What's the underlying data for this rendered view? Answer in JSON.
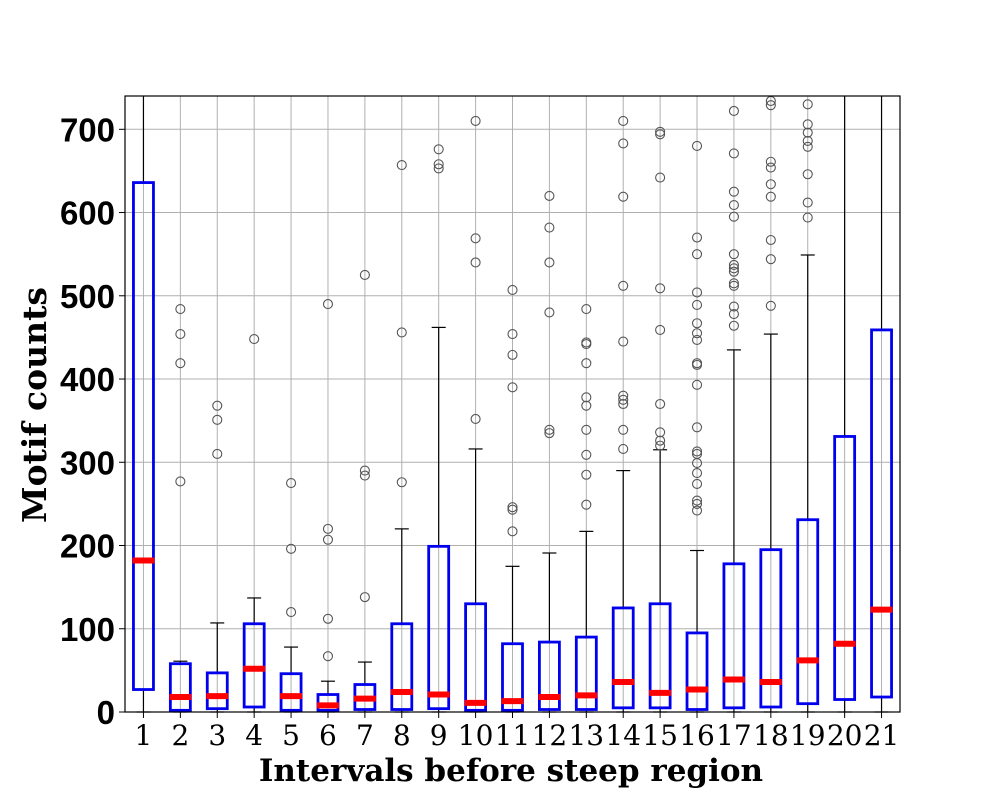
{
  "chart_data": {
    "type": "box",
    "xlabel": "Intervals before steep region",
    "ylabel": "Motif counts",
    "ylim": [
      0,
      740
    ],
    "yticks": [
      0,
      100,
      200,
      300,
      400,
      500,
      600,
      700
    ],
    "grid": true,
    "colors": {
      "box": "#0000ee",
      "median": "#ff0000",
      "whisker": "#000000",
      "flier": "#555555",
      "grid": "#b0b0b0"
    },
    "boxes": [
      {
        "label": "1",
        "whislo": 0,
        "q1": 27,
        "med": 182,
        "q3": 636,
        "whishi": 740,
        "fliers": []
      },
      {
        "label": "2",
        "whislo": 0,
        "q1": 2,
        "med": 18,
        "q3": 58,
        "whishi": 61,
        "fliers": [
          277,
          419,
          454,
          484
        ]
      },
      {
        "label": "3",
        "whislo": 0,
        "q1": 4,
        "med": 19,
        "q3": 47,
        "whishi": 107,
        "fliers": [
          310,
          351,
          368
        ]
      },
      {
        "label": "4",
        "whislo": 0,
        "q1": 6,
        "med": 52,
        "q3": 106,
        "whishi": 137,
        "fliers": [
          448
        ]
      },
      {
        "label": "5",
        "whislo": 0,
        "q1": 2,
        "med": 19,
        "q3": 46,
        "whishi": 78,
        "fliers": [
          120,
          196,
          275
        ]
      },
      {
        "label": "6",
        "whislo": 0,
        "q1": 2,
        "med": 8,
        "q3": 21,
        "whishi": 37,
        "fliers": [
          67,
          112,
          207,
          220,
          490
        ]
      },
      {
        "label": "7",
        "whislo": 0,
        "q1": 3,
        "med": 16,
        "q3": 33,
        "whishi": 60,
        "fliers": [
          138,
          284,
          290,
          525
        ]
      },
      {
        "label": "8",
        "whislo": 0,
        "q1": 3,
        "med": 24,
        "q3": 106,
        "whishi": 220,
        "fliers": [
          276,
          456,
          657
        ]
      },
      {
        "label": "9",
        "whislo": 0,
        "q1": 4,
        "med": 21,
        "q3": 199,
        "whishi": 462,
        "fliers": [
          653,
          658,
          676
        ]
      },
      {
        "label": "10",
        "whislo": 0,
        "q1": 2,
        "med": 11,
        "q3": 130,
        "whishi": 316,
        "fliers": [
          352,
          540,
          569,
          710
        ]
      },
      {
        "label": "11",
        "whislo": 0,
        "q1": 2,
        "med": 13,
        "q3": 82,
        "whishi": 175,
        "fliers": [
          217,
          243,
          246,
          390,
          429,
          454,
          507
        ]
      },
      {
        "label": "12",
        "whislo": 0,
        "q1": 3,
        "med": 18,
        "q3": 84,
        "whishi": 191,
        "fliers": [
          335,
          339,
          480,
          540,
          582,
          620
        ]
      },
      {
        "label": "13",
        "whislo": 0,
        "q1": 3,
        "med": 20,
        "q3": 90,
        "whishi": 217,
        "fliers": [
          249,
          285,
          309,
          339,
          368,
          378,
          419,
          442,
          444,
          484
        ]
      },
      {
        "label": "14",
        "whislo": 0,
        "q1": 5,
        "med": 36,
        "q3": 125,
        "whishi": 290,
        "fliers": [
          316,
          339,
          370,
          375,
          380,
          445,
          512,
          619,
          683,
          710
        ]
      },
      {
        "label": "15",
        "whislo": 0,
        "q1": 5,
        "med": 23,
        "q3": 130,
        "whishi": 315,
        "fliers": [
          320,
          326,
          336,
          370,
          459,
          509,
          642,
          694,
          697
        ]
      },
      {
        "label": "16",
        "whislo": 0,
        "q1": 3,
        "med": 27,
        "q3": 95,
        "whishi": 194,
        "fliers": [
          242,
          250,
          254,
          274,
          287,
          299,
          310,
          313,
          342,
          393,
          417,
          419,
          447,
          455,
          467,
          489,
          504,
          550,
          570,
          680
        ]
      },
      {
        "label": "17",
        "whislo": 0,
        "q1": 5,
        "med": 39,
        "q3": 178,
        "whishi": 435,
        "fliers": [
          464,
          478,
          487,
          512,
          515,
          529,
          533,
          537,
          550,
          595,
          609,
          625,
          671,
          722
        ]
      },
      {
        "label": "18",
        "whislo": 0,
        "q1": 6,
        "med": 36,
        "q3": 195,
        "whishi": 454,
        "fliers": [
          488,
          544,
          567,
          619,
          634,
          654,
          661,
          729,
          734
        ]
      },
      {
        "label": "19",
        "whislo": 0,
        "q1": 10,
        "med": 62,
        "q3": 231,
        "whishi": 549,
        "fliers": [
          594,
          612,
          646,
          679,
          686,
          696,
          706,
          730
        ]
      },
      {
        "label": "20",
        "whislo": 0,
        "q1": 15,
        "med": 82,
        "q3": 331,
        "whishi": 740,
        "fliers": []
      },
      {
        "label": "21",
        "whislo": 0,
        "q1": 18,
        "med": 123,
        "q3": 459,
        "whishi": 740,
        "fliers": []
      }
    ]
  }
}
